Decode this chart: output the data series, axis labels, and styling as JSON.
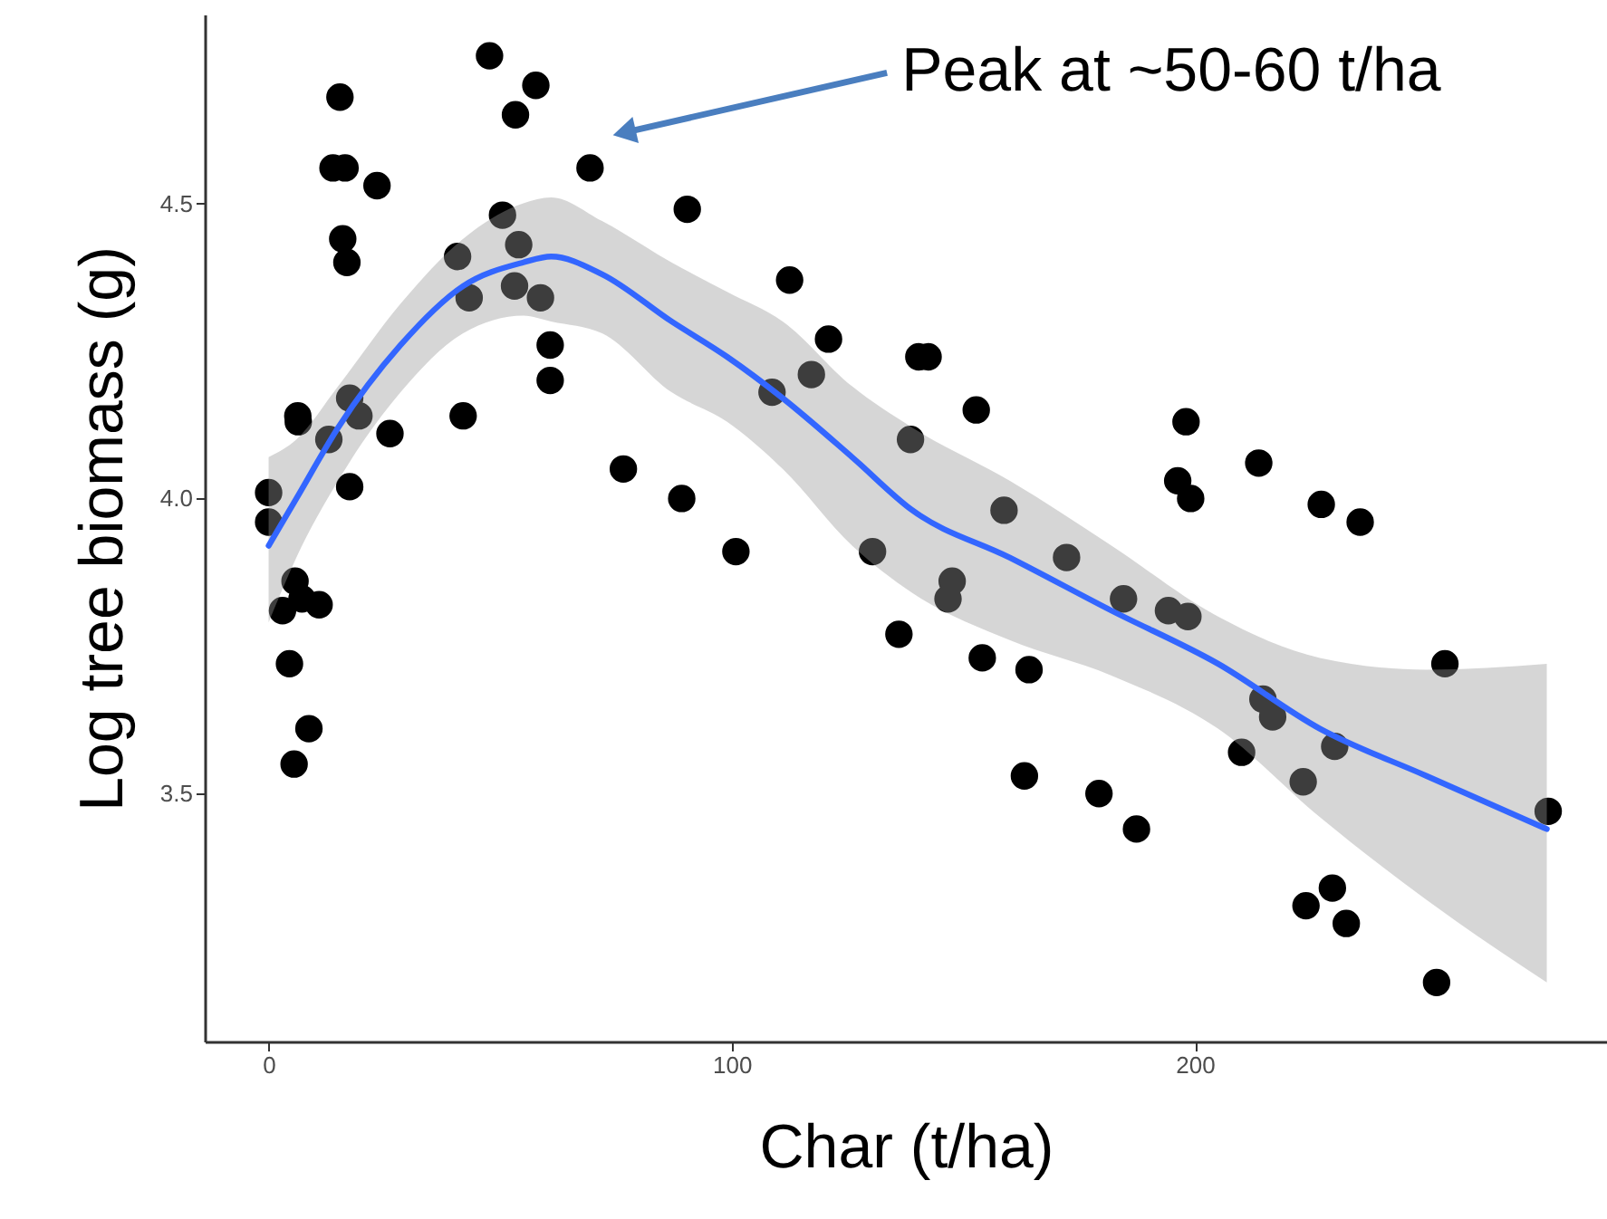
{
  "chart_data": {
    "type": "scatter",
    "xlabel": "Char (t/ha)",
    "ylabel": "Log tree biomass (g)",
    "xlim": [
      -13.8,
      289
    ],
    "ylim": [
      3.08,
      4.82
    ],
    "xticks": [
      0,
      100,
      200
    ],
    "yticks": [
      3.5,
      {
        "value": 4.0,
        "label": "4.0"
      },
      4.5
    ],
    "grid": false,
    "marker": "circle",
    "annotations": [
      {
        "text": "Peak at ~50-60 t/ha",
        "x": 76.8,
        "y": 4.62
      }
    ],
    "series": [
      {
        "color": "#000000",
        "x": [
          0,
          0,
          6.3,
          6.4,
          15.4,
          13.9,
          16.5,
          16.0,
          16.9,
          17.5,
          19.5,
          13.0,
          17.5,
          23.4,
          26.2,
          5.7,
          3.0,
          7.2,
          10.9,
          4.5,
          8.7,
          5.5,
          47.7,
          57.7,
          53.3,
          50.5,
          40.8,
          43.3,
          54.0,
          53.1,
          58.7,
          42.0,
          60.8,
          60.8,
          69.4,
          76.6,
          90.4,
          89.2,
          100.9,
          112.5,
          120.9,
          117.2,
          108.7,
          130.4,
          136.1,
          140.4,
          142.4,
          138.6,
          152.8,
          158.8,
          147.6,
          146.7,
          154.1,
          164.2,
          163.2,
          179.3,
          187.4,
          172.3,
          184.6,
          194.3,
          198.5,
          198.1,
          196.3,
          199.1,
          213.8,
          214.7,
          216.8,
          210.1,
          230.2,
          223.4,
          227.3,
          235.7,
          254.0,
          276.3,
          224.0,
          229.7,
          232.7,
          252.2
        ],
        "values": [
          4.01,
          3.96,
          4.14,
          4.13,
          4.68,
          4.56,
          4.56,
          4.44,
          4.4,
          4.17,
          4.14,
          4.1,
          4.02,
          4.53,
          4.11,
          3.86,
          3.81,
          3.83,
          3.82,
          3.72,
          3.61,
          3.55,
          4.75,
          4.7,
          4.65,
          4.48,
          4.41,
          4.34,
          4.43,
          4.36,
          4.34,
          4.14,
          4.26,
          4.2,
          4.56,
          4.05,
          4.49,
          4.0,
          3.91,
          4.37,
          4.27,
          4.21,
          4.18,
          3.91,
          3.77,
          4.24,
          4.24,
          4.1,
          4.15,
          3.98,
          3.86,
          3.83,
          3.73,
          3.71,
          3.53,
          3.5,
          3.44,
          3.9,
          3.83,
          3.81,
          3.8,
          4.13,
          4.03,
          4.0,
          4.06,
          3.66,
          3.63,
          3.57,
          3.58,
          3.52,
          3.99,
          3.96,
          3.72,
          3.47,
          3.31,
          3.34,
          3.28,
          3.18
        ]
      },
      {
        "type": "line",
        "marker": "none",
        "color": "#3366ff",
        "x": [
          0,
          6,
          15,
          28.5,
          42,
          55,
          61,
          72,
          87,
          99,
          111,
          126,
          139,
          160,
          182,
          205,
          227,
          250,
          276
        ],
        "values": [
          3.92,
          4.0,
          4.12,
          4.26,
          4.36,
          4.4,
          4.41,
          4.38,
          4.3,
          4.24,
          4.17,
          4.07,
          3.98,
          3.9,
          3.81,
          3.72,
          3.61,
          3.53,
          3.44
        ],
        "lower": [
          3.79,
          3.9,
          4.03,
          4.18,
          4.28,
          4.31,
          4.3,
          4.28,
          4.18,
          4.13,
          4.05,
          3.92,
          3.84,
          3.76,
          3.7,
          3.61,
          3.46,
          3.32,
          3.18
        ],
        "upper": [
          4.07,
          4.1,
          4.19,
          4.33,
          4.44,
          4.5,
          4.51,
          4.47,
          4.4,
          4.35,
          4.3,
          4.19,
          4.12,
          4.03,
          3.92,
          3.8,
          3.73,
          3.71,
          3.72
        ]
      }
    ]
  }
}
